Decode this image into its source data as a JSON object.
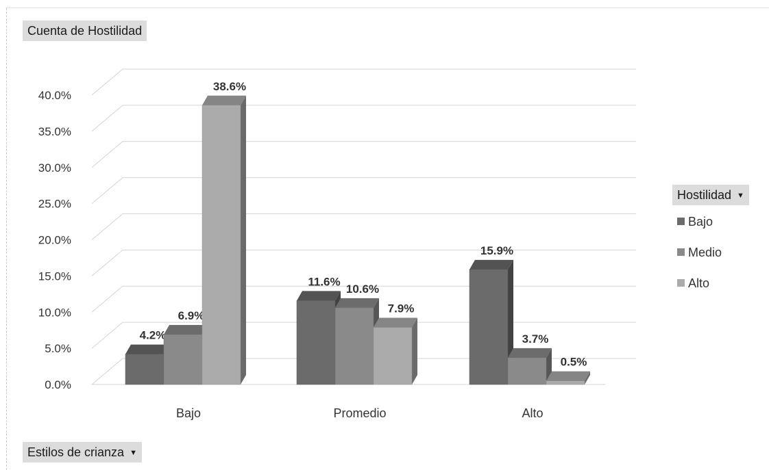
{
  "chart_data": {
    "type": "bar",
    "title": "",
    "xlabel": "",
    "ylabel": "",
    "categories": [
      "Bajo",
      "Promedio",
      "Alto"
    ],
    "series": [
      {
        "name": "Bajo",
        "values": [
          4.2,
          11.6,
          15.9
        ],
        "labels": [
          "4.2%",
          "11.6%",
          "15.9%"
        ],
        "color": "#6b6b6b"
      },
      {
        "name": "Medio",
        "values": [
          6.9,
          10.6,
          3.7
        ],
        "labels": [
          "6.9%",
          "10.6%",
          "3.7%"
        ],
        "color": "#8a8a8a"
      },
      {
        "name": "Alto",
        "values": [
          38.6,
          7.9,
          0.5
        ],
        "labels": [
          "38.6%",
          "7.9%",
          "0.5%"
        ],
        "color": "#ababab"
      }
    ],
    "ylim": [
      0,
      40
    ],
    "yticks": [
      0,
      5,
      10,
      15,
      20,
      25,
      30,
      35,
      40
    ],
    "ytick_labels": [
      "0.0%",
      "5.0%",
      "10.0%",
      "15.0%",
      "20.0%",
      "25.0%",
      "30.0%",
      "35.0%",
      "40.0%"
    ],
    "grid": true,
    "style": "3d-clustered-column",
    "legend_position": "right"
  },
  "pivot": {
    "value_field": "Cuenta de Hostilidad",
    "legend_field": "Hostilidad",
    "axis_field": "Estilos de crianza"
  }
}
